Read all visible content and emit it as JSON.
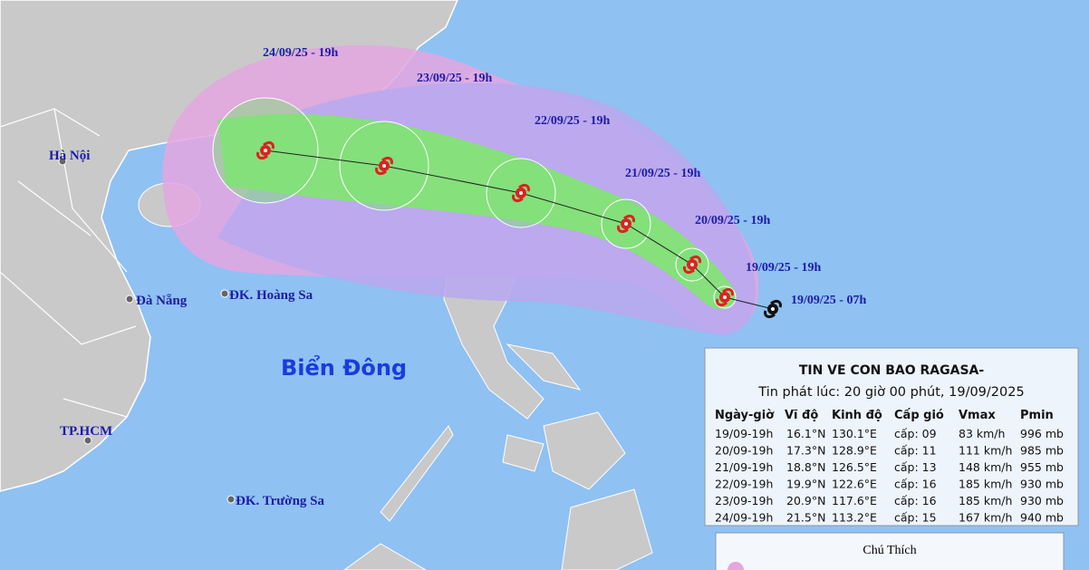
{
  "map": {
    "places": [
      "Hà Nội",
      "Đà Nẵng",
      "ĐK. Hoàng Sa",
      "TP.HCM",
      "ĐK. Trường Sa"
    ],
    "sea": "Biển Đông",
    "track_labels": [
      "24/09/25 - 19h",
      "23/09/25 - 19h",
      "22/09/25 - 19h",
      "21/09/25 - 19h",
      "20/09/25 - 19h",
      "19/09/25 - 19h",
      "19/09/25 - 07h"
    ]
  },
  "info": {
    "title": "TIN VE CON BAO RAGASA-",
    "subtitle": "Tin phát lúc: 20 giờ 00 phút, 19/09/2025",
    "table": {
      "header": [
        "Ngày-giờ",
        "Vĩ độ",
        "Kinh độ",
        "Cấp gió",
        "Vmax",
        "Pmin"
      ],
      "rows": [
        [
          "19/09-19h",
          "16.1°N",
          "130.1°E",
          "cấp: 09",
          "83 km/h",
          "996 mb"
        ],
        [
          "20/09-19h",
          "17.3°N",
          "128.9°E",
          "cấp: 11",
          "111 km/h",
          "985 mb"
        ],
        [
          "21/09-19h",
          "18.8°N",
          "126.5°E",
          "cấp: 13",
          "148 km/h",
          "955 mb"
        ],
        [
          "22/09-19h",
          "19.9°N",
          "122.6°E",
          "cấp: 16",
          "185 km/h",
          "930 mb"
        ],
        [
          "23/09-19h",
          "20.9°N",
          "117.6°E",
          "cấp: 16",
          "185 km/h",
          "930 mb"
        ],
        [
          "24/09-19h",
          "21.5°N",
          "113.2°E",
          "cấp: 15",
          "167 km/h",
          "940 mb"
        ]
      ]
    }
  },
  "legend": {
    "title": "Chú Thích"
  }
}
